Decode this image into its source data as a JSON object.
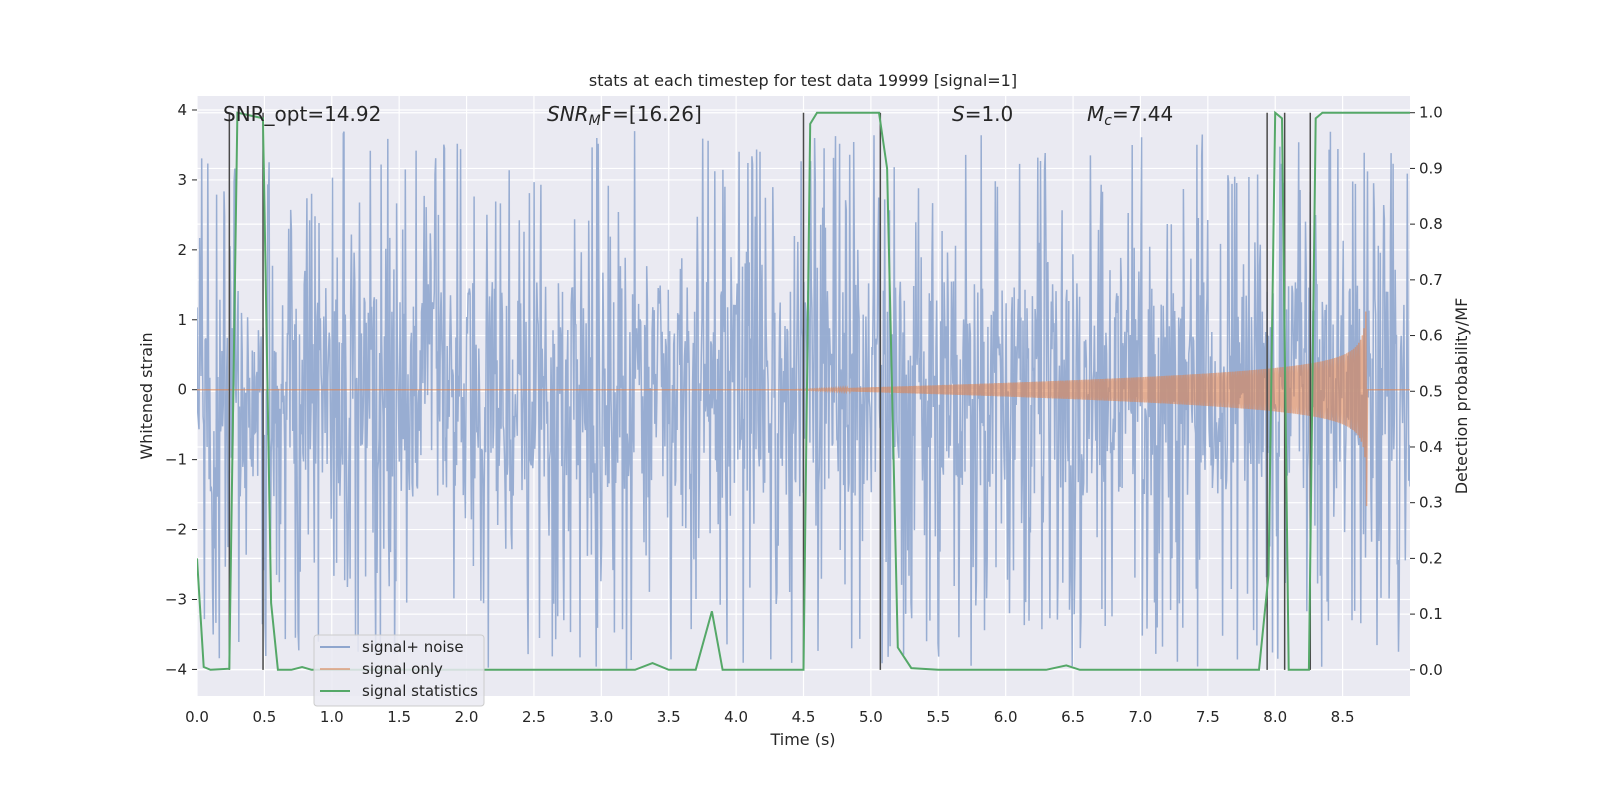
{
  "chart_data": {
    "type": "line",
    "title": "stats at each timestep for test data 19999 [signal=1]",
    "xlabel": "Time (s)",
    "ylabel_left": "Whitened strain",
    "ylabel_right": "Detection probability/MF",
    "xlim": [
      0.0,
      9.0
    ],
    "ylim_left": [
      -4.38,
      4.2
    ],
    "ylim_right": [
      -0.047,
      1.03
    ],
    "xticks": [
      "0.0",
      "0.5",
      "1.0",
      "1.5",
      "2.0",
      "2.5",
      "3.0",
      "3.5",
      "4.0",
      "4.5",
      "5.0",
      "5.5",
      "6.0",
      "6.5",
      "7.0",
      "7.5",
      "8.0",
      "8.5"
    ],
    "yticks_left": [
      "4",
      "3",
      "2",
      "1",
      "0",
      "−1",
      "−2",
      "−3",
      "−4"
    ],
    "yticks_right": [
      "1.0",
      "0.9",
      "0.8",
      "0.7",
      "0.6",
      "0.5",
      "0.4",
      "0.3",
      "0.2",
      "0.1",
      "0.0"
    ],
    "annotations": {
      "snr_opt": "SNR_opt=14.92",
      "snr_mf_base": "SNR",
      "snr_mf_sub": "M",
      "snr_mf_rest": "F=[16.26]",
      "s_var": "S",
      "s_rest": "=1.0",
      "mc_var": "M",
      "mc_sub": "c",
      "mc_rest": "=7.44"
    },
    "legend": {
      "location": "lower-left",
      "entries": [
        "signal+ noise",
        "signal only",
        "signal statistics"
      ]
    },
    "colors": {
      "signal_noise": "#8fa6ce",
      "signal_only": "#dd8452",
      "statistics": "#55a868",
      "background": "#eaeaf2",
      "grid": "#ffffff",
      "vlines": "#4a4a4a"
    },
    "series": [
      {
        "name": "signal statistics",
        "axis": "right",
        "x": [
          0.0,
          0.05,
          0.1,
          0.24,
          0.3,
          0.49,
          0.55,
          0.6,
          0.7,
          0.78,
          0.85,
          3.25,
          3.38,
          3.5,
          3.7,
          3.82,
          3.9,
          4.5,
          4.55,
          4.6,
          5.06,
          5.12,
          5.2,
          5.3,
          5.5,
          6.3,
          6.45,
          6.55,
          7.88,
          7.95,
          8.0,
          8.05,
          8.1,
          8.25,
          8.3,
          8.35,
          9.0
        ],
        "y": [
          0.2,
          0.005,
          0.0,
          0.002,
          1.0,
          0.99,
          0.12,
          0.0,
          0.0,
          0.005,
          0.0,
          0.0,
          0.012,
          0.0,
          0.0,
          0.105,
          0.0,
          0.0,
          0.98,
          1.0,
          1.0,
          0.9,
          0.04,
          0.003,
          0.0,
          0.0,
          0.008,
          0.0,
          0.0,
          0.17,
          1.0,
          0.99,
          0.0,
          0.0,
          0.99,
          1.0,
          1.0
        ]
      },
      {
        "name": "signal only",
        "axis": "left",
        "chirp": {
          "t_merge": 8.68,
          "amplitude_at_merge": 2.0,
          "visible_from": 4.4
        }
      },
      {
        "name": "signal+ noise",
        "axis": "left",
        "band": {
          "core": [
            -1.55,
            1.55
          ],
          "spikes_to": [
            -4.0,
            3.7
          ],
          "samples": 1800
        }
      }
    ],
    "detection_vlines_x": [
      0.24,
      0.49,
      4.5,
      5.07,
      7.94,
      8.07,
      8.26
    ]
  }
}
